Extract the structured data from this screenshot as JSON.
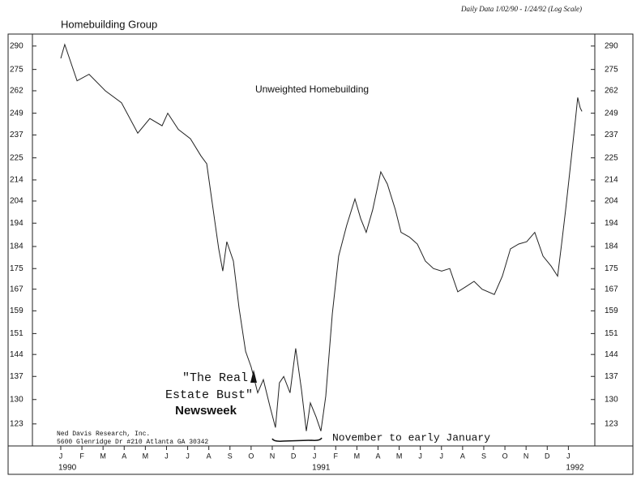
{
  "chart_data": {
    "type": "line",
    "title": "Homebuilding Group",
    "subtitle": "Daily Data 1/02/90 - 1/24/92 (Log Scale)",
    "log_scale": true,
    "color": "#222",
    "series": [
      {
        "name": "Unweighted Homebuilding",
        "color": "#222",
        "x": [
          0,
          0.19,
          0.77,
          1.34,
          2.11,
          2.87,
          3.64,
          4.21,
          4.79,
          5.06,
          5.56,
          6.13,
          6.63,
          6.9,
          7.28,
          7.47,
          7.66,
          7.85,
          8.16,
          8.43,
          8.74,
          9.0,
          9.31,
          9.58,
          9.89,
          10.15,
          10.34,
          10.54,
          10.84,
          11.11,
          11.38,
          11.61,
          11.8,
          12.07,
          12.3,
          12.53,
          12.84,
          13.14,
          13.52,
          13.91,
          14.18,
          14.44,
          14.75,
          15.13,
          15.44,
          15.82,
          16.09,
          16.48,
          16.86,
          17.24,
          17.62,
          18.01,
          18.39,
          18.77,
          19.16,
          19.54,
          19.92,
          20.5,
          20.88,
          21.26,
          21.65,
          22.03,
          22.41,
          22.8,
          23.18,
          23.49,
          23.68,
          23.87,
          24.14,
          24.33,
          24.44,
          24.56,
          24.64
        ],
        "values": [
          282,
          291,
          268,
          272,
          262,
          255,
          238,
          246,
          242,
          249,
          240,
          235,
          226,
          222,
          195,
          183,
          174,
          186,
          178,
          160,
          145,
          140,
          132,
          136,
          128,
          122,
          135,
          137,
          132,
          146,
          133,
          121,
          129,
          125,
          121,
          131,
          158,
          180,
          193,
          205,
          196,
          190,
          200,
          218,
          212,
          200,
          190,
          188,
          185,
          178,
          175,
          174,
          175,
          166,
          168,
          170,
          167,
          165,
          172,
          183,
          185,
          186,
          190,
          180,
          176,
          172,
          185,
          200,
          225,
          245,
          258,
          252,
          250
        ]
      }
    ],
    "xlim": [
      -1.34,
      25.25
    ],
    "xticks": [
      {
        "value": 0,
        "label": "J"
      },
      {
        "value": 1,
        "label": "F"
      },
      {
        "value": 2,
        "label": "M"
      },
      {
        "value": 3,
        "label": "A"
      },
      {
        "value": 4,
        "label": "M"
      },
      {
        "value": 5,
        "label": "J"
      },
      {
        "value": 6,
        "label": "J"
      },
      {
        "value": 7,
        "label": "A"
      },
      {
        "value": 8,
        "label": "S"
      },
      {
        "value": 9,
        "label": "O"
      },
      {
        "value": 10,
        "label": "N"
      },
      {
        "value": 11,
        "label": "D"
      },
      {
        "value": 12,
        "label": "J"
      },
      {
        "value": 13,
        "label": "F"
      },
      {
        "value": 14,
        "label": "M"
      },
      {
        "value": 15,
        "label": "A"
      },
      {
        "value": 16,
        "label": "M"
      },
      {
        "value": 17,
        "label": "J"
      },
      {
        "value": 18,
        "label": "J"
      },
      {
        "value": 19,
        "label": "A"
      },
      {
        "value": 20,
        "label": "S"
      },
      {
        "value": 21,
        "label": "O"
      },
      {
        "value": 22,
        "label": "N"
      },
      {
        "value": 23,
        "label": "D"
      },
      {
        "value": 24,
        "label": "J"
      }
    ],
    "year_labels": [
      {
        "value": 0,
        "label": "1990"
      },
      {
        "value": 12,
        "label": "1991"
      },
      {
        "value": 24,
        "label": "1992"
      }
    ],
    "ylim": [
      117,
      298
    ],
    "yticks": [
      123,
      130,
      137,
      144,
      151,
      159,
      167,
      175,
      184,
      194,
      204,
      214,
      225,
      237,
      249,
      262,
      275,
      290
    ],
    "annotation_quote": [
      "\"The Real",
      "Estate Bust\"",
      "Newsweek"
    ],
    "period_label": "November to early January",
    "source": [
      "Ned Davis Research, Inc.",
      "5600 Glenridge Dr #210 Atlanta GA 30342"
    ]
  }
}
